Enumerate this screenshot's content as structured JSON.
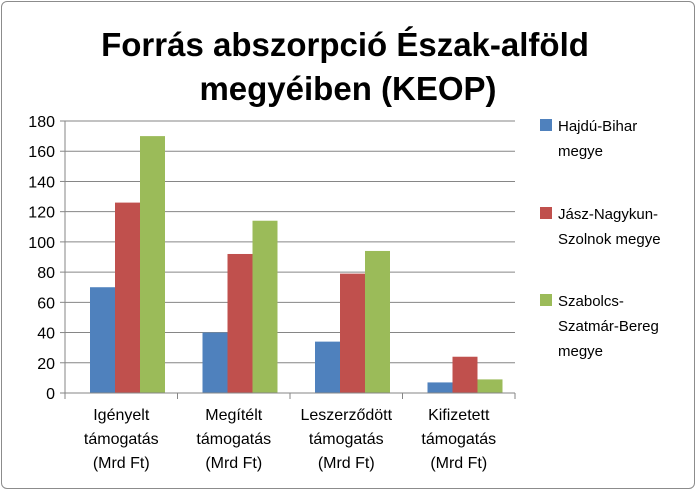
{
  "chart_data": {
    "type": "bar",
    "title_lines": [
      "Forrás abszorpció Észak-alföld",
      "megyéiben (KEOP)"
    ],
    "categories": [
      [
        "Igényelt",
        "támogatás",
        "(Mrd Ft)"
      ],
      [
        "Megítélt",
        "támogatás",
        "(Mrd Ft)"
      ],
      [
        "Leszerződött",
        "támogatás",
        "(Mrd Ft)"
      ],
      [
        "Kifizetett",
        "támogatás",
        "(Mrd Ft)"
      ]
    ],
    "series": [
      {
        "name_lines": [
          "Hajdú-Bihar",
          "megye"
        ],
        "color": "#4f81bd",
        "values": [
          70,
          40,
          34,
          7
        ]
      },
      {
        "name_lines": [
          "Jász-Nagykun-",
          "Szolnok megye"
        ],
        "color": "#c0504d",
        "values": [
          126,
          92,
          79,
          24
        ]
      },
      {
        "name_lines": [
          "Szabolcs-",
          "Szatmár-Bereg",
          "megye"
        ],
        "color": "#9bbb59",
        "values": [
          170,
          114,
          94,
          9
        ]
      }
    ],
    "yticks": [
      "0",
      "20",
      "40",
      "60",
      "80",
      "100",
      "120",
      "140",
      "160",
      "180"
    ],
    "ylim": [
      0,
      180
    ],
    "grid": true,
    "legend_position": "right"
  }
}
